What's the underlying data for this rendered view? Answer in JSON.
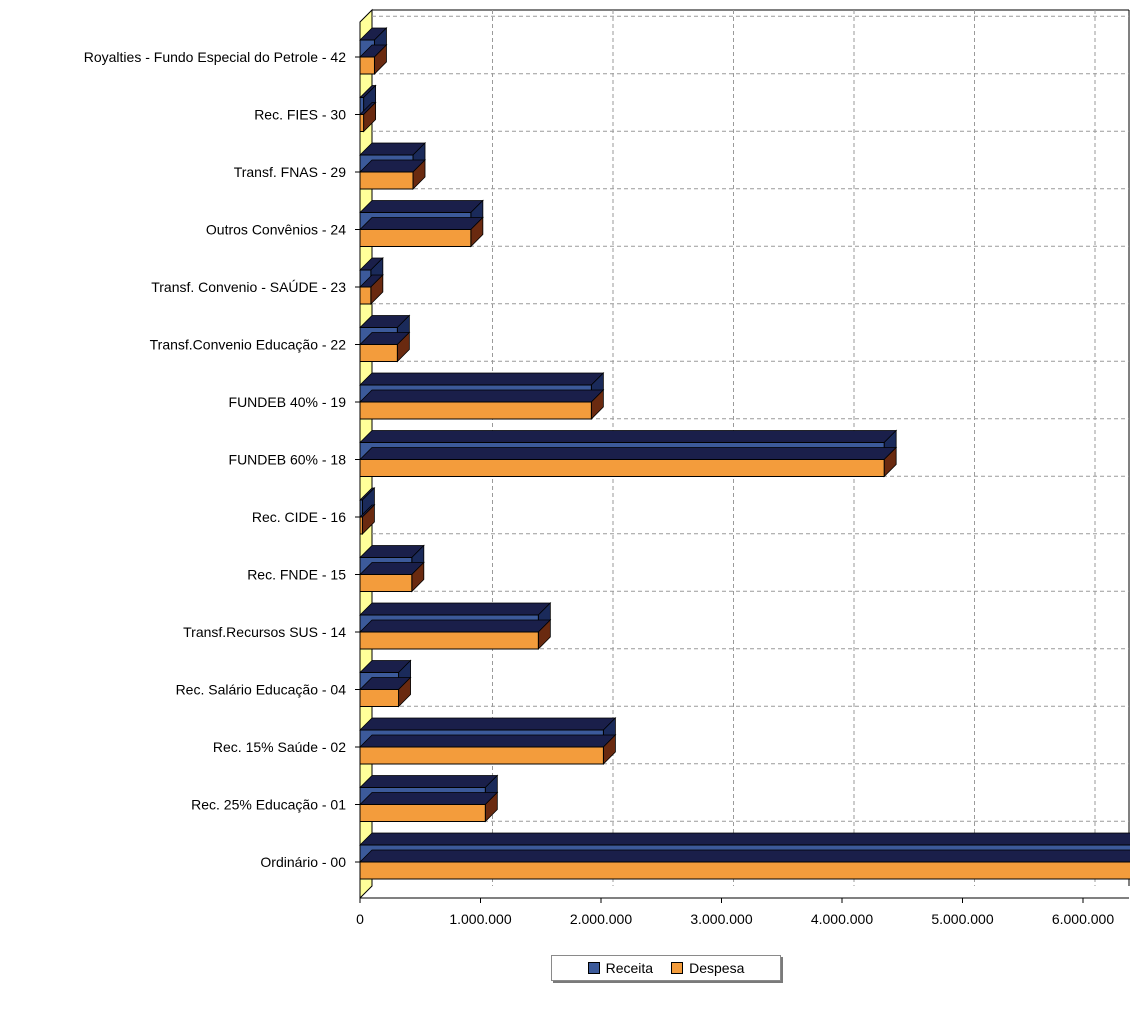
{
  "chart_data": {
    "type": "bar",
    "orientation": "horizontal",
    "title": "",
    "xlabel": "",
    "ylabel": "",
    "categories": [
      "Royalties - Fundo Especial do Petrole - 42",
      "Rec. FIES - 30",
      "Transf. FNAS - 29",
      "Outros Convênios - 24",
      "Transf. Convenio - SAÚDE - 23",
      "Transf.Convenio Educação - 22",
      "FUNDEB 40% - 19",
      "FUNDEB 60% - 18",
      "Rec. CIDE - 16",
      "Rec. FNDE - 15",
      "Transf.Recursos SUS - 14",
      "Rec. Salário Educação - 04",
      "Rec. 15% Saúde - 02",
      "Rec. 25% Educação - 01",
      "Ordinário - 00"
    ],
    "series": [
      {
        "name": "Receita",
        "color": "#3c5a9a",
        "values": [
          120000,
          30000,
          440000,
          920000,
          90000,
          310000,
          1920000,
          4350000,
          20000,
          430000,
          1480000,
          320000,
          2020000,
          1040000,
          6400000
        ]
      },
      {
        "name": "Despesa",
        "color": "#f39c3c",
        "values": [
          120000,
          30000,
          440000,
          920000,
          90000,
          310000,
          1920000,
          4350000,
          20000,
          430000,
          1480000,
          320000,
          2020000,
          1040000,
          6400000
        ]
      }
    ],
    "xlim": [
      0,
      6400000
    ],
    "xticks": [
      0,
      1000000,
      2000000,
      3000000,
      4000000,
      5000000,
      6000000
    ],
    "xtick_labels": [
      "0",
      "1.000.000",
      "2.000.000",
      "3.000.000",
      "4.000.000",
      "5.000.000",
      "6.000.000"
    ],
    "grid": true,
    "legend_position": "bottom-center"
  },
  "legend": {
    "receita_label": "Receita",
    "despesa_label": "Despesa"
  }
}
